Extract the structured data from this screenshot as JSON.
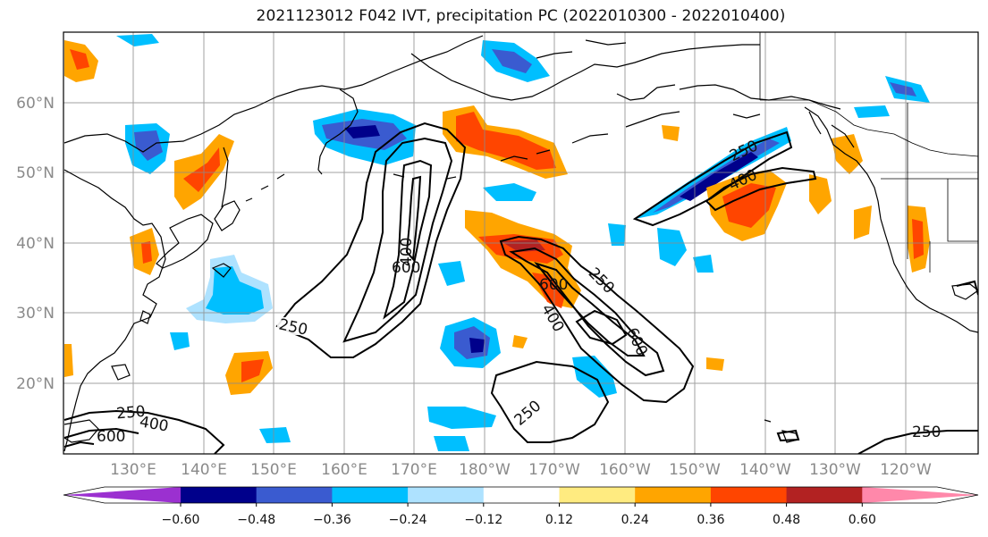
{
  "title": "2021123012 F042 IVT, precipitation PC (2022010300 - 2022010400)",
  "lat_labels": [
    "60°N",
    "50°N",
    "40°N",
    "30°N",
    "20°N"
  ],
  "lon_labels": [
    "130°E",
    "140°E",
    "150°E",
    "160°E",
    "170°E",
    "180°W",
    "170°W",
    "160°W",
    "150°W",
    "140°W",
    "130°W",
    "120°W"
  ],
  "contour_levels": [
    "250",
    "400",
    "600"
  ],
  "contour_labels": [
    "250",
    "400",
    "600",
    "250",
    "600",
    "400",
    "250",
    "600",
    "400",
    "600",
    "250",
    "250",
    "400",
    "600",
    "250",
    "400",
    "250"
  ],
  "colorbar": {
    "ticks": [
      "−0.60",
      "−0.48",
      "−0.36",
      "−0.24",
      "−0.12",
      "0.12",
      "0.24",
      "0.36",
      "0.48",
      "0.60"
    ],
    "colors": [
      "#9b30d0",
      "#00008b",
      "#3a5bd0",
      "#00bfff",
      "#aee2ff",
      "#ffffff",
      "#ffeb80",
      "#ffa500",
      "#ff4500",
      "#b22222",
      "#ff88aa"
    ]
  }
}
